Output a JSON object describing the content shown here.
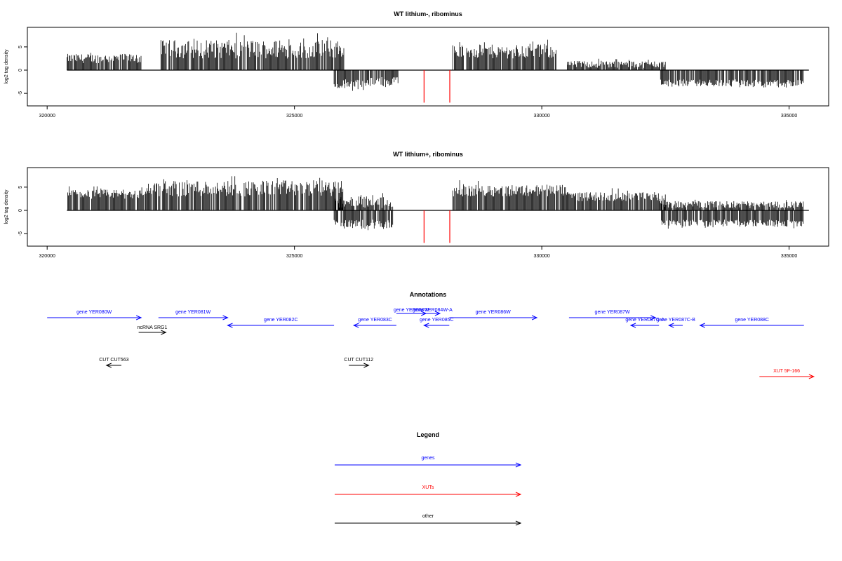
{
  "colors": {
    "gene": "#0000ff",
    "xut": "#ff0000",
    "other": "#000000",
    "marker": "#ff0000",
    "bar": "#000000"
  },
  "chart_data": [
    {
      "type": "bar",
      "title": "WT lithium-, ribominus",
      "ylabel": "log2 tag density",
      "xlim": [
        319600,
        335800
      ],
      "ylim": [
        -7.5,
        8.5
      ],
      "xticks": [
        320000,
        325000,
        330000,
        335000
      ],
      "yticks": [
        -5,
        0,
        5
      ],
      "baseline": [
        320400,
        335400
      ],
      "markers_x": [
        327620,
        328140
      ],
      "markers_y_min": -7,
      "segments": [
        {
          "x0": 320400,
          "x1": 321900,
          "pos": [
            1.5,
            3.5
          ],
          "neg": [
            0,
            0
          ]
        },
        {
          "x0": 322300,
          "x1": 326000,
          "pos": [
            2.5,
            6.5
          ],
          "neg": [
            0,
            0
          ]
        },
        {
          "x0": 325800,
          "x1": 326500,
          "pos": [
            0,
            0
          ],
          "neg": [
            -2.0,
            -4.0
          ]
        },
        {
          "x0": 326500,
          "x1": 327100,
          "pos": [
            0,
            0
          ],
          "neg": [
            -1.5,
            -3.5
          ]
        },
        {
          "x0": 328200,
          "x1": 330300,
          "pos": [
            2.5,
            5.5
          ],
          "neg": [
            0,
            0
          ]
        },
        {
          "x0": 330500,
          "x1": 332500,
          "pos": [
            0.5,
            2.0
          ],
          "neg": [
            0,
            0
          ]
        },
        {
          "x0": 332400,
          "x1": 335300,
          "pos": [
            0,
            0
          ],
          "neg": [
            -2.0,
            -3.5
          ]
        }
      ]
    },
    {
      "type": "bar",
      "title": "WT lithium+, ribominus",
      "ylabel": "log2 tag density",
      "xlim": [
        319600,
        335800
      ],
      "ylim": [
        -7.5,
        8.5
      ],
      "xticks": [
        320000,
        325000,
        330000,
        335000
      ],
      "yticks": [
        -5,
        0,
        5
      ],
      "baseline": [
        320400,
        335400
      ],
      "markers_x": [
        327620,
        328140
      ],
      "markers_y_min": -7,
      "segments": [
        {
          "x0": 320400,
          "x1": 322000,
          "pos": [
            2.5,
            4.5
          ],
          "neg": [
            0,
            0
          ]
        },
        {
          "x0": 322000,
          "x1": 326000,
          "pos": [
            3.0,
            6.5
          ],
          "neg": [
            0,
            0
          ]
        },
        {
          "x0": 325800,
          "x1": 327000,
          "pos": [
            0.5,
            3.0
          ],
          "neg": [
            -2.0,
            -4.0
          ]
        },
        {
          "x0": 328200,
          "x1": 330500,
          "pos": [
            3.0,
            5.5
          ],
          "neg": [
            0,
            0
          ]
        },
        {
          "x0": 330500,
          "x1": 332500,
          "pos": [
            2.0,
            4.0
          ],
          "neg": [
            0,
            0
          ]
        },
        {
          "x0": 332400,
          "x1": 335300,
          "pos": [
            0.5,
            2.0
          ],
          "neg": [
            -2.0,
            -3.5
          ]
        }
      ]
    }
  ],
  "annotations": {
    "title": "Annotations",
    "features": [
      {
        "label": "gene YER080W",
        "start": 320000,
        "end": 321900,
        "strand": "+",
        "kind": "gene",
        "row": 1
      },
      {
        "label": "gene YER081W",
        "start": 322250,
        "end": 323650,
        "strand": "+",
        "kind": "gene",
        "row": 1
      },
      {
        "label": "gene YER082C",
        "start": 323650,
        "end": 325800,
        "strand": "-",
        "kind": "gene",
        "row": 2
      },
      {
        "label": "gene YER083C",
        "start": 326200,
        "end": 327060,
        "strand": "-",
        "kind": "gene",
        "row": 2
      },
      {
        "label": "gene YER084W",
        "start": 327060,
        "end": 327660,
        "strand": "+",
        "kind": "gene",
        "row": 0
      },
      {
        "label": "gene YER084W-A",
        "start": 327640,
        "end": 327940,
        "strand": "+",
        "kind": "gene",
        "row": 0
      },
      {
        "label": "gene YER085C",
        "start": 327620,
        "end": 328130,
        "strand": "-",
        "kind": "gene",
        "row": 2
      },
      {
        "label": "gene YER086W",
        "start": 328130,
        "end": 329900,
        "strand": "+",
        "kind": "gene",
        "row": 1
      },
      {
        "label": "gene YER087W",
        "start": 330550,
        "end": 332300,
        "strand": "+",
        "kind": "gene",
        "row": 1
      },
      {
        "label": "gene YER087C-A",
        "start": 331800,
        "end": 332370,
        "strand": "-",
        "kind": "gene",
        "row": 2
      },
      {
        "label": "gene YER087C-B",
        "start": 332570,
        "end": 332850,
        "strand": "-",
        "kind": "gene",
        "row": 2
      },
      {
        "label": "gene YER088C",
        "start": 333200,
        "end": 335300,
        "strand": "-",
        "kind": "gene",
        "row": 2
      },
      {
        "label": "ncRNA SRG1",
        "start": 321850,
        "end": 322400,
        "strand": "+",
        "kind": "other",
        "row": 3
      },
      {
        "label": "CUT CUT563",
        "start": 321200,
        "end": 321500,
        "strand": "-",
        "kind": "other",
        "row": 4
      },
      {
        "label": "CUT CUT112",
        "start": 326100,
        "end": 326500,
        "strand": "+",
        "kind": "other",
        "row": 4
      },
      {
        "label": "XUT 5F-166",
        "start": 334400,
        "end": 335500,
        "strand": "+",
        "kind": "xut",
        "row": 5
      }
    ]
  },
  "legend": {
    "title": "Legend",
    "items": [
      {
        "label": "genes",
        "kind": "gene"
      },
      {
        "label": "XUTs",
        "kind": "xut"
      },
      {
        "label": "other",
        "kind": "other"
      }
    ]
  }
}
